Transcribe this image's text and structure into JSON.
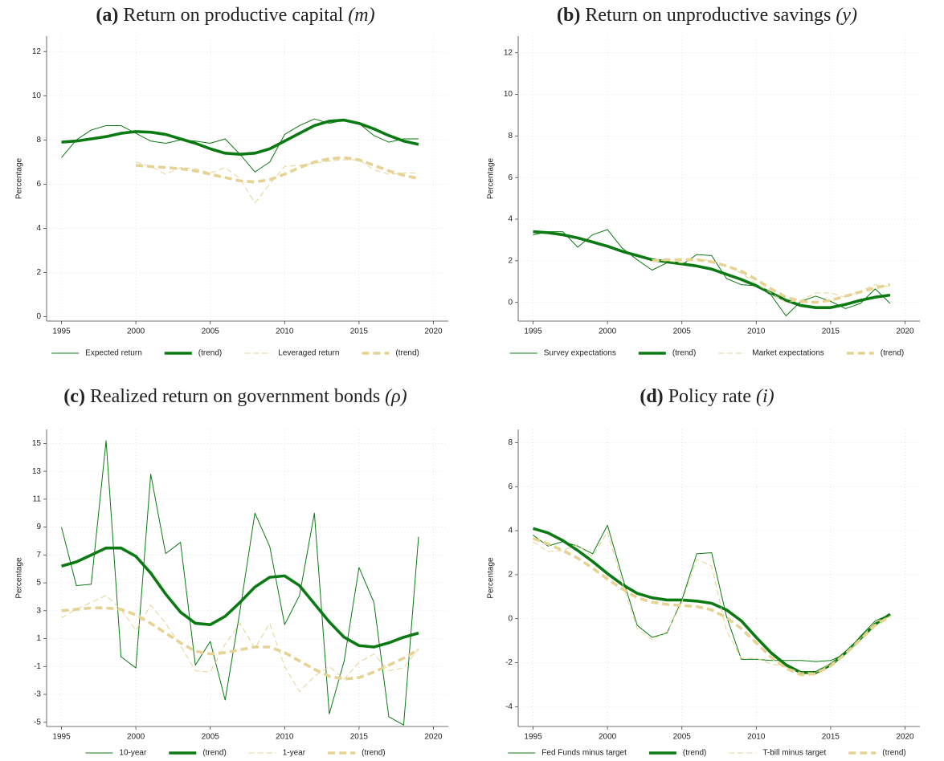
{
  "chart_data": [
    {
      "type": "line",
      "panel": "(a)",
      "title": "Return on productive capital",
      "symbol": "(m)",
      "y_label": "Percentage",
      "x": [
        1995,
        1996,
        1997,
        1998,
        1999,
        2000,
        2001,
        2002,
        2003,
        2004,
        2005,
        2006,
        2007,
        2008,
        2009,
        2010,
        2011,
        2012,
        2013,
        2014,
        2015,
        2016,
        2017,
        2018,
        2019
      ],
      "xlim": [
        1994,
        2021
      ],
      "xticks": [
        1995,
        2000,
        2005,
        2010,
        2015,
        2020
      ],
      "ylim": [
        -0.2,
        12.7
      ],
      "yticks": [
        0,
        2,
        4,
        6,
        8,
        10,
        12
      ],
      "grid": true,
      "series": [
        {
          "name": "Expected return",
          "color": "#0b7a12",
          "style": "solid",
          "weight": "thin",
          "values": [
            7.2,
            8.0,
            8.45,
            8.65,
            8.65,
            8.3,
            7.95,
            7.85,
            8.0,
            7.95,
            7.85,
            8.05,
            7.35,
            6.55,
            7.0,
            8.25,
            8.65,
            8.95,
            8.75,
            8.9,
            8.75,
            8.2,
            7.9,
            8.05,
            8.05
          ]
        },
        {
          "name": "(trend)",
          "color": "#0b7a12",
          "style": "solid",
          "weight": "thick",
          "values": [
            7.9,
            7.95,
            8.05,
            8.15,
            8.3,
            8.38,
            8.35,
            8.25,
            8.05,
            7.85,
            7.6,
            7.4,
            7.35,
            7.4,
            7.6,
            7.95,
            8.3,
            8.65,
            8.85,
            8.9,
            8.75,
            8.5,
            8.2,
            7.95,
            7.8
          ]
        },
        {
          "name": "Leveraged return",
          "color": "#e6d394",
          "style": "dashed",
          "weight": "thin",
          "values": [
            null,
            null,
            null,
            null,
            null,
            7.0,
            6.8,
            6.45,
            6.75,
            6.7,
            6.5,
            6.75,
            6.25,
            5.15,
            6.0,
            6.8,
            6.85,
            6.95,
            7.05,
            7.1,
            7.1,
            6.65,
            6.45,
            6.5,
            6.5
          ]
        },
        {
          "name": "(trend)",
          "color": "#e6d394",
          "style": "dashed",
          "weight": "thick",
          "values": [
            null,
            null,
            null,
            null,
            null,
            6.85,
            6.8,
            6.75,
            6.7,
            6.6,
            6.45,
            6.3,
            6.15,
            6.1,
            6.2,
            6.45,
            6.75,
            7.0,
            7.15,
            7.2,
            7.1,
            6.85,
            6.6,
            6.4,
            6.25
          ]
        }
      ]
    },
    {
      "type": "line",
      "panel": "(b)",
      "title": "Return on unproductive savings",
      "symbol": "(y)",
      "y_label": "Percentage",
      "x": [
        1995,
        1996,
        1997,
        1998,
        1999,
        2000,
        2001,
        2002,
        2003,
        2004,
        2005,
        2006,
        2007,
        2008,
        2009,
        2010,
        2011,
        2012,
        2013,
        2014,
        2015,
        2016,
        2017,
        2018,
        2019
      ],
      "xlim": [
        1994,
        2021
      ],
      "xticks": [
        1995,
        2000,
        2005,
        2010,
        2015,
        2020
      ],
      "ylim": [
        -0.9,
        12.8
      ],
      "yticks": [
        0,
        2,
        4,
        6,
        8,
        10,
        12
      ],
      "grid": true,
      "series": [
        {
          "name": "Survey expectations",
          "color": "#0b7a12",
          "style": "solid",
          "weight": "thin",
          "values": [
            3.25,
            3.4,
            3.4,
            2.65,
            3.25,
            3.5,
            2.6,
            2.05,
            1.55,
            1.9,
            1.8,
            2.3,
            2.25,
            1.15,
            0.85,
            0.8,
            0.35,
            -0.65,
            0.05,
            0.3,
            0.05,
            -0.3,
            -0.05,
            0.65,
            -0.05
          ]
        },
        {
          "name": "(trend)",
          "color": "#0b7a12",
          "style": "solid",
          "weight": "thick",
          "values": [
            3.4,
            3.35,
            3.25,
            3.1,
            2.9,
            2.7,
            2.45,
            2.25,
            2.05,
            1.95,
            1.85,
            1.75,
            1.6,
            1.35,
            1.1,
            0.8,
            0.45,
            0.1,
            -0.15,
            -0.25,
            -0.25,
            -0.1,
            0.1,
            0.25,
            0.35
          ]
        },
        {
          "name": "Market expectations",
          "color": "#e6d394",
          "style": "dashed",
          "weight": "thin",
          "values": [
            null,
            null,
            null,
            null,
            null,
            null,
            null,
            null,
            2.05,
            2.0,
            1.9,
            2.1,
            2.0,
            1.8,
            1.4,
            0.9,
            0.45,
            0.0,
            0.1,
            0.45,
            0.45,
            0.25,
            0.55,
            0.85,
            0.75
          ]
        },
        {
          "name": "(trend)",
          "color": "#e6d394",
          "style": "dashed",
          "weight": "thick",
          "values": [
            null,
            null,
            null,
            null,
            null,
            null,
            null,
            null,
            2.0,
            2.05,
            2.05,
            2.05,
            1.95,
            1.75,
            1.5,
            1.1,
            0.65,
            0.25,
            0.05,
            0.0,
            0.1,
            0.3,
            0.5,
            0.7,
            0.85
          ]
        }
      ]
    },
    {
      "type": "line",
      "panel": "(c)",
      "title": "Realized return on government bonds",
      "symbol": "(ρ)",
      "y_label": "Percentage",
      "x": [
        1995,
        1996,
        1997,
        1998,
        1999,
        2000,
        2001,
        2002,
        2003,
        2004,
        2005,
        2006,
        2007,
        2008,
        2009,
        2010,
        2011,
        2012,
        2013,
        2014,
        2015,
        2016,
        2017,
        2018,
        2019
      ],
      "xlim": [
        1994,
        2021
      ],
      "xticks": [
        1995,
        2000,
        2005,
        2010,
        2015,
        2020
      ],
      "ylim": [
        -5.3,
        16
      ],
      "yticks": [
        -5,
        -3,
        -1,
        1,
        3,
        5,
        7,
        9,
        11,
        13,
        15
      ],
      "grid": true,
      "series": [
        {
          "name": "10-year",
          "color": "#0b7a12",
          "style": "solid",
          "weight": "thin",
          "values": [
            9.0,
            4.8,
            4.9,
            15.2,
            -0.3,
            -1.1,
            12.8,
            7.1,
            7.9,
            -0.9,
            0.8,
            -3.4,
            3.0,
            10.0,
            7.6,
            2.0,
            4.1,
            10.0,
            -4.4,
            -0.6,
            6.1,
            3.6,
            -4.6,
            -5.2,
            8.3
          ]
        },
        {
          "name": "(trend)",
          "color": "#0b7a12",
          "style": "solid",
          "weight": "thick",
          "values": [
            6.2,
            6.5,
            7.0,
            7.5,
            7.5,
            6.9,
            5.7,
            4.2,
            2.9,
            2.1,
            2.0,
            2.6,
            3.6,
            4.7,
            5.4,
            5.5,
            4.8,
            3.5,
            2.2,
            1.1,
            0.5,
            0.4,
            0.7,
            1.1,
            1.4
          ]
        },
        {
          "name": "1-year",
          "color": "#e6d394",
          "style": "dashed",
          "weight": "thin",
          "values": [
            2.5,
            3.1,
            3.6,
            4.1,
            3.1,
            1.6,
            3.4,
            2.1,
            0.5,
            -1.3,
            -1.4,
            0.6,
            2.1,
            0.3,
            2.1,
            -1.0,
            -2.8,
            -1.7,
            -1.0,
            -1.9,
            -0.7,
            -0.1,
            -1.3,
            -1.1,
            0.3
          ]
        },
        {
          "name": "(trend)",
          "color": "#e6d394",
          "style": "dashed",
          "weight": "thick",
          "values": [
            3.0,
            3.1,
            3.2,
            3.2,
            3.1,
            2.7,
            2.1,
            1.4,
            0.7,
            0.1,
            -0.1,
            0.0,
            0.2,
            0.4,
            0.4,
            0.0,
            -0.6,
            -1.2,
            -1.7,
            -1.9,
            -1.8,
            -1.4,
            -0.9,
            -0.4,
            0.2
          ]
        }
      ]
    },
    {
      "type": "line",
      "panel": "(d)",
      "title": "Policy rate",
      "symbol": "(i)",
      "y_label": "Percentage",
      "x": [
        1995,
        1996,
        1997,
        1998,
        1999,
        2000,
        2001,
        2002,
        2003,
        2004,
        2005,
        2006,
        2007,
        2008,
        2009,
        2010,
        2011,
        2012,
        2013,
        2014,
        2015,
        2016,
        2017,
        2018,
        2019
      ],
      "xlim": [
        1994,
        2021
      ],
      "xticks": [
        1995,
        2000,
        2005,
        2010,
        2015,
        2020
      ],
      "ylim": [
        -4.9,
        8.6
      ],
      "yticks": [
        -4,
        -2,
        0,
        2,
        4,
        6,
        8
      ],
      "grid": true,
      "series": [
        {
          "name": "Fed Funds minus target",
          "color": "#0b7a12",
          "style": "solid",
          "weight": "thin",
          "values": [
            3.8,
            3.3,
            3.5,
            3.3,
            2.95,
            4.25,
            1.9,
            -0.3,
            -0.85,
            -0.65,
            0.85,
            2.95,
            3.0,
            0.1,
            -1.85,
            -1.85,
            -1.9,
            -1.9,
            -1.9,
            -1.95,
            -1.9,
            -1.6,
            -0.8,
            -0.1,
            0.2
          ]
        },
        {
          "name": "(trend)",
          "color": "#0b7a12",
          "style": "solid",
          "weight": "thick",
          "values": [
            4.1,
            3.9,
            3.55,
            3.1,
            2.6,
            2.05,
            1.55,
            1.15,
            0.95,
            0.85,
            0.85,
            0.8,
            0.7,
            0.4,
            -0.1,
            -0.85,
            -1.55,
            -2.1,
            -2.45,
            -2.45,
            -2.1,
            -1.55,
            -0.9,
            -0.25,
            0.2
          ]
        },
        {
          "name": "T-bill minus target",
          "color": "#e6d394",
          "style": "dashed",
          "weight": "thin",
          "values": [
            3.5,
            3.05,
            3.1,
            3.35,
            2.8,
            3.95,
            1.6,
            -0.45,
            -0.95,
            -0.6,
            0.75,
            2.7,
            2.4,
            -0.55,
            -1.8,
            -1.8,
            -2.05,
            -2.2,
            -2.45,
            -2.45,
            -2.05,
            -1.65,
            -0.9,
            -0.15,
            0.1
          ]
        },
        {
          "name": "(trend)",
          "color": "#e6d394",
          "style": "dashed",
          "weight": "thick",
          "values": [
            3.65,
            3.4,
            3.1,
            2.75,
            2.3,
            1.8,
            1.35,
            0.95,
            0.75,
            0.65,
            0.6,
            0.55,
            0.4,
            0.05,
            -0.45,
            -1.1,
            -1.75,
            -2.25,
            -2.55,
            -2.5,
            -2.15,
            -1.6,
            -0.95,
            -0.3,
            0.1
          ]
        }
      ]
    }
  ]
}
